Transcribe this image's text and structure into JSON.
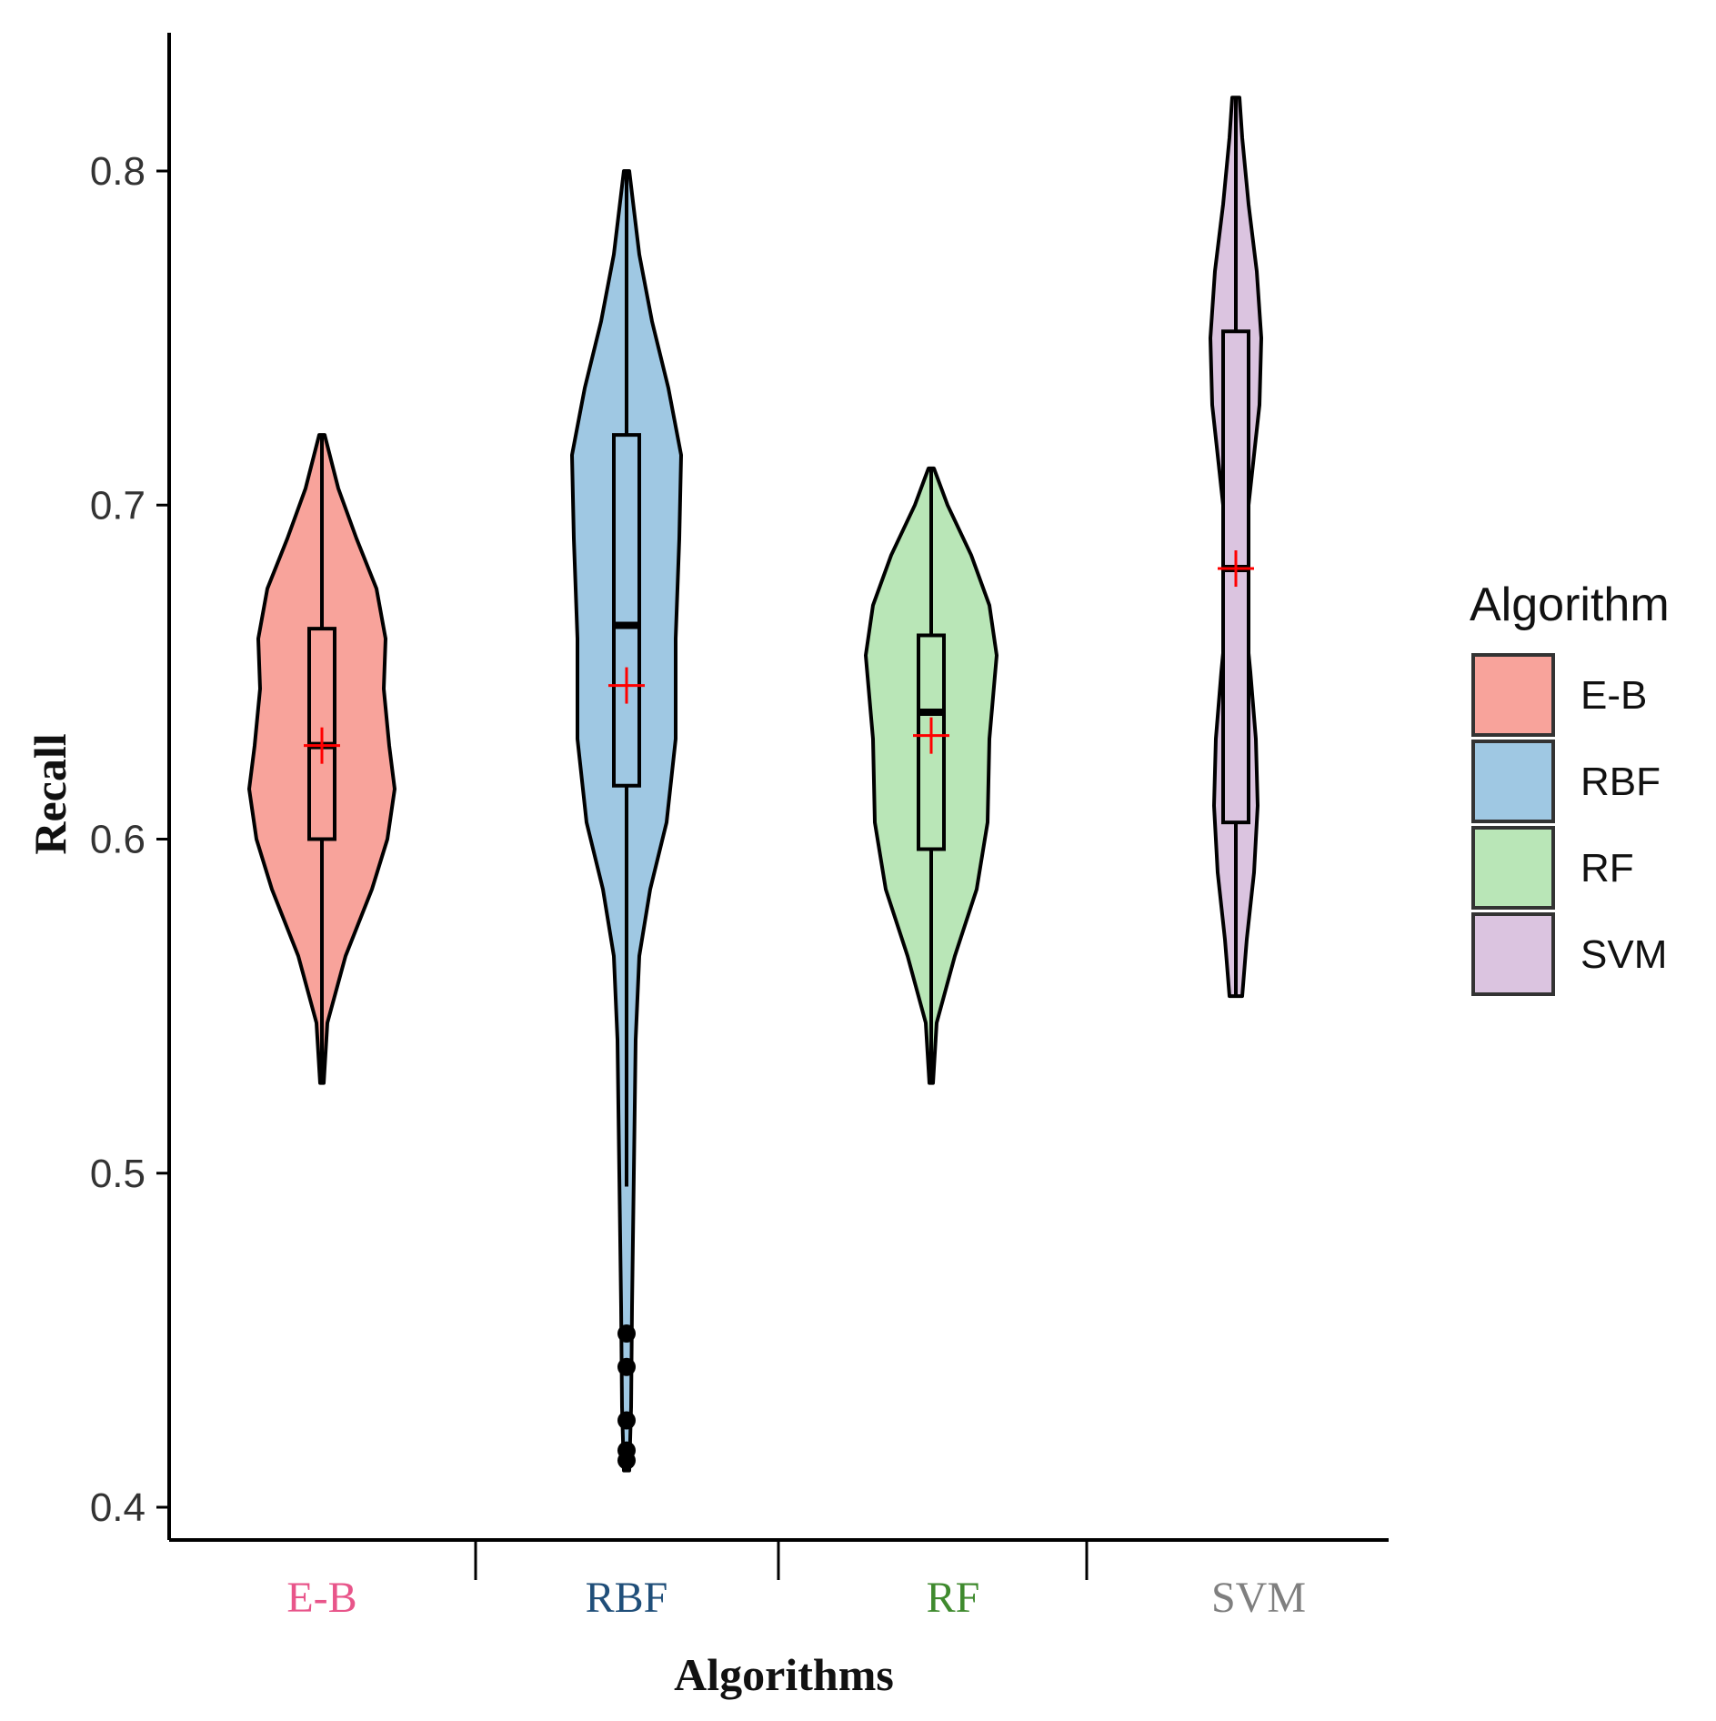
{
  "chart_data": {
    "type": "violin",
    "title": "",
    "xlabel": "Algorithms",
    "ylabel": "Recall",
    "ylim": [
      0.39,
      0.84
    ],
    "yticks": [
      0.4,
      0.5,
      0.6,
      0.7,
      0.8
    ],
    "ytick_labels": [
      "0.4",
      "0.5",
      "0.6",
      "0.7",
      "0.8"
    ],
    "categories": [
      "E-B",
      "RBF",
      "RF",
      "SVM"
    ],
    "category_label_colors": [
      "#e8558a",
      "#1f4e79",
      "#3f8a2e",
      "#7f7f7f"
    ],
    "legend": {
      "title": "Algorithm",
      "position": "right",
      "entries": [
        "E-B",
        "RBF",
        "RF",
        "SVM"
      ]
    },
    "series": [
      {
        "name": "E-B",
        "fill": "#f8a39b",
        "min": 0.527,
        "max": 0.721,
        "q1": 0.6,
        "median": 0.628,
        "q3": 0.663,
        "whisker_low": 0.527,
        "whisker_high": 0.721,
        "mean": 0.628,
        "outliers": [],
        "density": [
          [
            0.527,
            0.02
          ],
          [
            0.545,
            0.06
          ],
          [
            0.565,
            0.26
          ],
          [
            0.585,
            0.55
          ],
          [
            0.6,
            0.72
          ],
          [
            0.615,
            0.8
          ],
          [
            0.628,
            0.74
          ],
          [
            0.645,
            0.68
          ],
          [
            0.66,
            0.7
          ],
          [
            0.675,
            0.6
          ],
          [
            0.69,
            0.38
          ],
          [
            0.705,
            0.18
          ],
          [
            0.721,
            0.03
          ]
        ]
      },
      {
        "name": "RBF",
        "fill": "#9fc8e3",
        "min": 0.411,
        "max": 0.8,
        "q1": 0.616,
        "median": 0.664,
        "q3": 0.721,
        "whisker_low": 0.496,
        "whisker_high": 0.8,
        "mean": 0.646,
        "outliers": [
          0.452,
          0.442,
          0.426,
          0.417,
          0.414
        ],
        "density": [
          [
            0.411,
            0.03
          ],
          [
            0.43,
            0.05
          ],
          [
            0.46,
            0.06
          ],
          [
            0.5,
            0.08
          ],
          [
            0.54,
            0.1
          ],
          [
            0.565,
            0.14
          ],
          [
            0.585,
            0.26
          ],
          [
            0.605,
            0.44
          ],
          [
            0.63,
            0.54
          ],
          [
            0.66,
            0.54
          ],
          [
            0.69,
            0.58
          ],
          [
            0.715,
            0.6
          ],
          [
            0.735,
            0.46
          ],
          [
            0.755,
            0.28
          ],
          [
            0.775,
            0.14
          ],
          [
            0.8,
            0.03
          ]
        ]
      },
      {
        "name": "RF",
        "fill": "#b9e6b7",
        "min": 0.527,
        "max": 0.711,
        "q1": 0.597,
        "median": 0.638,
        "q3": 0.661,
        "whisker_low": 0.527,
        "whisker_high": 0.711,
        "mean": 0.631,
        "outliers": [],
        "density": [
          [
            0.527,
            0.02
          ],
          [
            0.545,
            0.06
          ],
          [
            0.565,
            0.26
          ],
          [
            0.585,
            0.5
          ],
          [
            0.605,
            0.62
          ],
          [
            0.63,
            0.64
          ],
          [
            0.655,
            0.72
          ],
          [
            0.67,
            0.64
          ],
          [
            0.685,
            0.44
          ],
          [
            0.7,
            0.18
          ],
          [
            0.711,
            0.03
          ]
        ]
      },
      {
        "name": "SVM",
        "fill": "#dbc4e0",
        "min": 0.553,
        "max": 0.822,
        "q1": 0.605,
        "median": 0.681,
        "q3": 0.752,
        "whisker_low": 0.553,
        "whisker_high": 0.822,
        "mean": 0.681,
        "outliers": [],
        "density": [
          [
            0.553,
            0.07
          ],
          [
            0.57,
            0.12
          ],
          [
            0.59,
            0.2
          ],
          [
            0.61,
            0.24
          ],
          [
            0.63,
            0.22
          ],
          [
            0.65,
            0.16
          ],
          [
            0.67,
            0.09
          ],
          [
            0.69,
            0.1
          ],
          [
            0.71,
            0.18
          ],
          [
            0.73,
            0.26
          ],
          [
            0.75,
            0.28
          ],
          [
            0.77,
            0.23
          ],
          [
            0.79,
            0.14
          ],
          [
            0.81,
            0.07
          ],
          [
            0.822,
            0.04
          ]
        ]
      }
    ]
  }
}
